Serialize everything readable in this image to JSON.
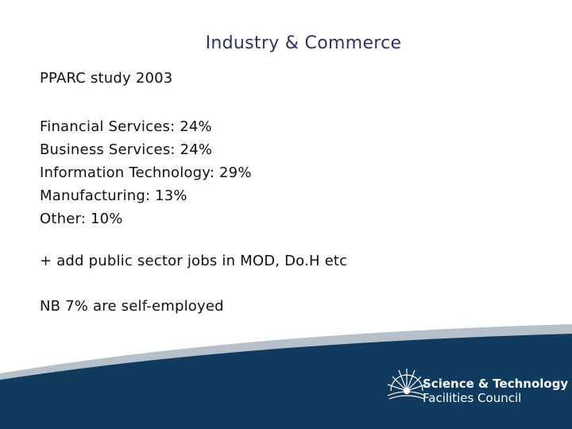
{
  "slide": {
    "title": "Industry & Commerce",
    "subtitle": "PPARC study 2003",
    "breakdown": [
      "Financial Services: 24%",
      "Business Services: 24%",
      "Information Technology: 29%",
      "Manufacturing: 13%",
      "Other: 10%"
    ],
    "note_public": "+ add public sector jobs in MOD, Do.H etc",
    "note_self_employed": "NB 7% are self-employed"
  },
  "branding": {
    "org_line1": "Science & Technology",
    "org_line2": "Facilities Council",
    "logo_icon": "sun-rays-logo-icon"
  },
  "colors": {
    "title": "#2e2f6e",
    "band": "#103a5e",
    "swoosh": "#b6c0ca"
  }
}
